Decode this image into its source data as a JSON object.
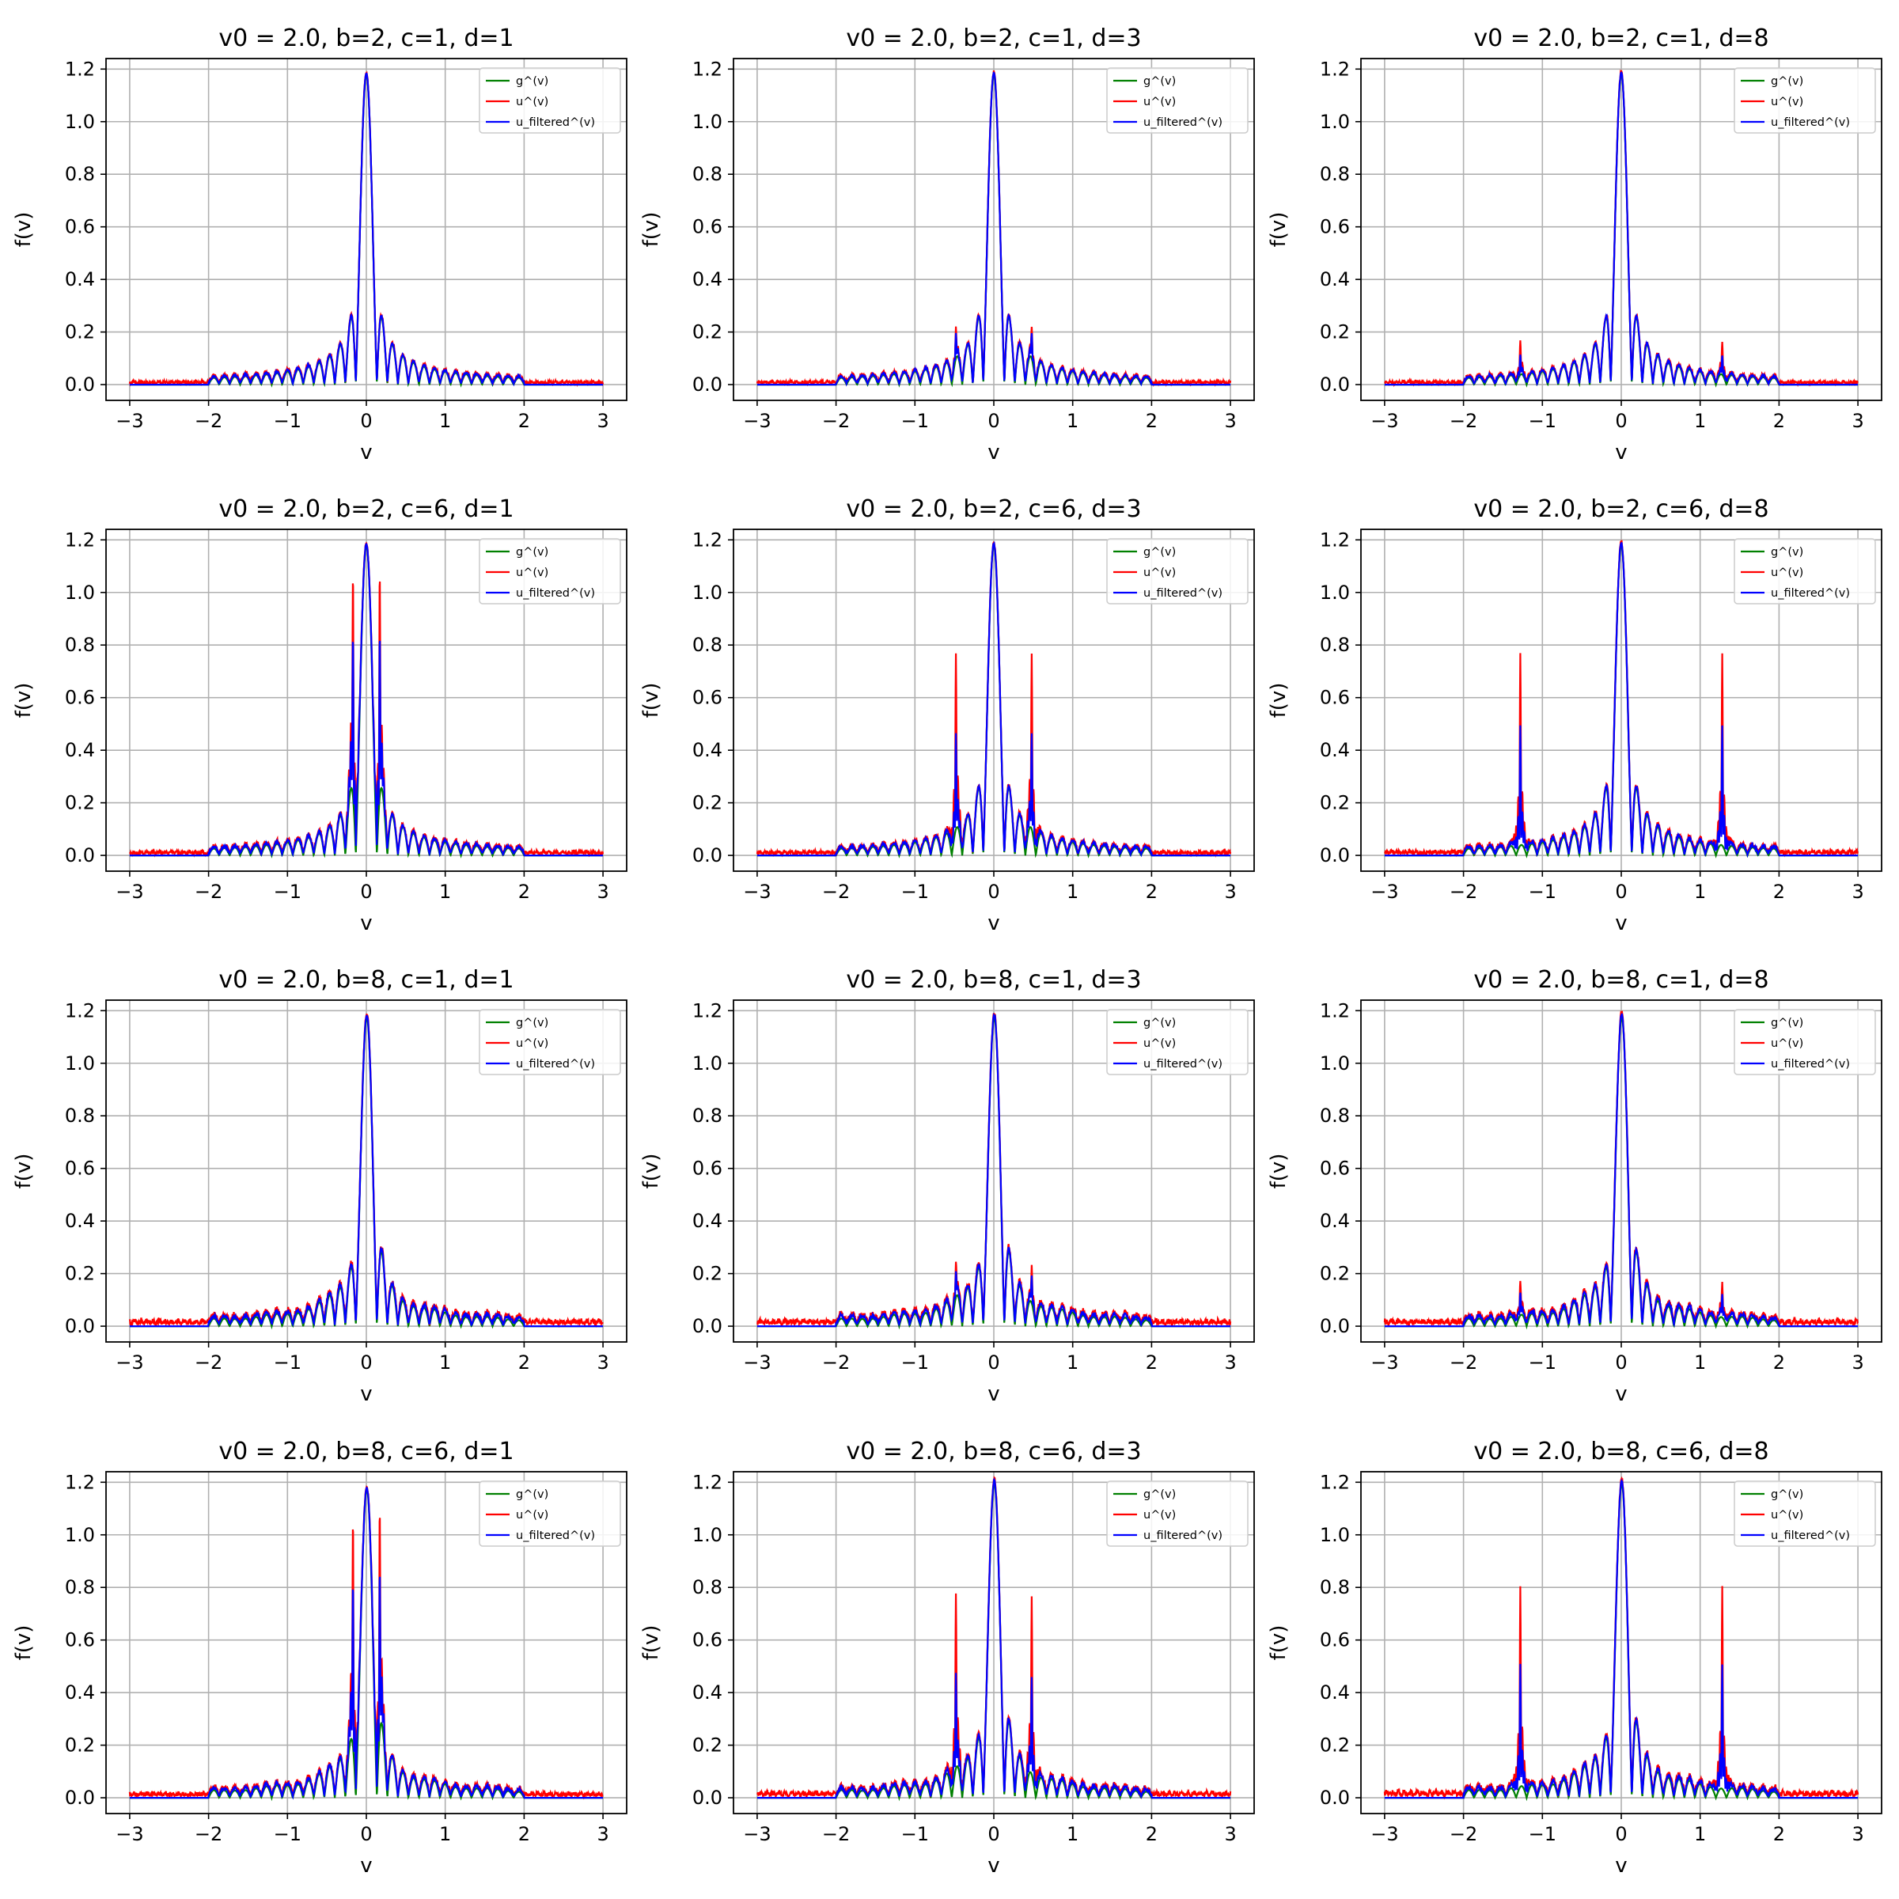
{
  "chart_data": [
    {
      "type": "line",
      "title": "v0 = 2.0, b=2, c=1, d=1",
      "xlabel": "v",
      "ylabel": "f(v)",
      "xlim": [
        -3.3,
        3.3
      ],
      "ylim": [
        -0.06,
        1.24
      ],
      "xticks": [
        "−3",
        "−2",
        "−1",
        "0",
        "1",
        "2",
        "3"
      ],
      "yticks": [
        "0.0",
        "0.2",
        "0.4",
        "0.6",
        "0.8",
        "1.0",
        "1.2"
      ],
      "grid": true,
      "legend": "top-right",
      "b": 2,
      "c": 1,
      "d": 1,
      "peak": 1.18,
      "spikes": [],
      "noise": 0.016,
      "series": [
        {
          "name": "g^(v)",
          "color": "#008000"
        },
        {
          "name": "u^(v)",
          "color": "#ff0000"
        },
        {
          "name": "u_filtered^(v)",
          "color": "#0000ff"
        }
      ]
    },
    {
      "type": "line",
      "title": "v0 = 2.0, b=2, c=1, d=3",
      "xlabel": "v",
      "ylabel": "f(v)",
      "xlim": [
        -3.3,
        3.3
      ],
      "ylim": [
        -0.06,
        1.24
      ],
      "xticks": [
        "−3",
        "−2",
        "−1",
        "0",
        "1",
        "2",
        "3"
      ],
      "yticks": [
        "0.0",
        "0.2",
        "0.4",
        "0.6",
        "0.8",
        "1.0",
        "1.2"
      ],
      "grid": true,
      "legend": "top-right",
      "b": 2,
      "c": 1,
      "d": 3,
      "peak": 1.18,
      "spikes": [
        {
          "x": 0.48,
          "u": 0.11,
          "f": 0.09
        }
      ],
      "noise": 0.016,
      "series": [
        {
          "name": "g^(v)",
          "color": "#008000"
        },
        {
          "name": "u^(v)",
          "color": "#ff0000"
        },
        {
          "name": "u_filtered^(v)",
          "color": "#0000ff"
        }
      ]
    },
    {
      "type": "line",
      "title": "v0 = 2.0, b=2, c=1, d=8",
      "xlabel": "v",
      "ylabel": "f(v)",
      "xlim": [
        -3.3,
        3.3
      ],
      "ylim": [
        -0.06,
        1.24
      ],
      "xticks": [
        "−3",
        "−2",
        "−1",
        "0",
        "1",
        "2",
        "3"
      ],
      "yticks": [
        "0.0",
        "0.2",
        "0.4",
        "0.6",
        "0.8",
        "1.0",
        "1.2"
      ],
      "grid": true,
      "legend": "top-right",
      "b": 2,
      "c": 1,
      "d": 8,
      "peak": 1.18,
      "spikes": [
        {
          "x": 1.28,
          "u": 0.12,
          "f": 0.07
        }
      ],
      "noise": 0.016,
      "series": [
        {
          "name": "g^(v)",
          "color": "#008000"
        },
        {
          "name": "u^(v)",
          "color": "#ff0000"
        },
        {
          "name": "u_filtered^(v)",
          "color": "#0000ff"
        }
      ]
    },
    {
      "type": "line",
      "title": "v0 = 2.0, b=2, c=6, d=1",
      "xlabel": "v",
      "ylabel": "f(v)",
      "xlim": [
        -3.3,
        3.3
      ],
      "ylim": [
        -0.06,
        1.24
      ],
      "xticks": [
        "−3",
        "−2",
        "−1",
        "0",
        "1",
        "2",
        "3"
      ],
      "yticks": [
        "0.0",
        "0.2",
        "0.4",
        "0.6",
        "0.8",
        "1.0",
        "1.2"
      ],
      "grid": true,
      "legend": "top-right",
      "b": 2,
      "c": 6,
      "d": 1,
      "peak": 1.18,
      "spikes": [
        {
          "x": 0.17,
          "u": 0.87,
          "f": 0.63
        }
      ],
      "noise": 0.02,
      "series": [
        {
          "name": "g^(v)",
          "color": "#008000"
        },
        {
          "name": "u^(v)",
          "color": "#ff0000"
        },
        {
          "name": "u_filtered^(v)",
          "color": "#0000ff"
        }
      ]
    },
    {
      "type": "line",
      "title": "v0 = 2.0, b=2, c=6, d=3",
      "xlabel": "v",
      "ylabel": "f(v)",
      "xlim": [
        -3.3,
        3.3
      ],
      "ylim": [
        -0.06,
        1.24
      ],
      "xticks": [
        "−3",
        "−2",
        "−1",
        "0",
        "1",
        "2",
        "3"
      ],
      "yticks": [
        "0.0",
        "0.2",
        "0.4",
        "0.6",
        "0.8",
        "1.0",
        "1.2"
      ],
      "grid": true,
      "legend": "top-right",
      "b": 2,
      "c": 6,
      "d": 3,
      "peak": 1.18,
      "spikes": [
        {
          "x": 0.48,
          "u": 0.66,
          "f": 0.36
        }
      ],
      "noise": 0.02,
      "series": [
        {
          "name": "g^(v)",
          "color": "#008000"
        },
        {
          "name": "u^(v)",
          "color": "#ff0000"
        },
        {
          "name": "u_filtered^(v)",
          "color": "#0000ff"
        }
      ]
    },
    {
      "type": "line",
      "title": "v0 = 2.0, b=2, c=6, d=8",
      "xlabel": "v",
      "ylabel": "f(v)",
      "xlim": [
        -3.3,
        3.3
      ],
      "ylim": [
        -0.06,
        1.24
      ],
      "xticks": [
        "−3",
        "−2",
        "−1",
        "0",
        "1",
        "2",
        "3"
      ],
      "yticks": [
        "0.0",
        "0.2",
        "0.4",
        "0.6",
        "0.8",
        "1.0",
        "1.2"
      ],
      "grid": true,
      "legend": "top-right",
      "b": 2,
      "c": 6,
      "d": 8,
      "peak": 1.18,
      "spikes": [
        {
          "x": 1.28,
          "u": 0.72,
          "f": 0.45
        }
      ],
      "noise": 0.022,
      "series": [
        {
          "name": "g^(v)",
          "color": "#008000"
        },
        {
          "name": "u^(v)",
          "color": "#ff0000"
        },
        {
          "name": "u_filtered^(v)",
          "color": "#0000ff"
        }
      ]
    },
    {
      "type": "line",
      "title": "v0 = 2.0, b=8, c=1, d=1",
      "xlabel": "v",
      "ylabel": "f(v)",
      "xlim": [
        -3.3,
        3.3
      ],
      "ylim": [
        -0.06,
        1.24
      ],
      "xticks": [
        "−3",
        "−2",
        "−1",
        "0",
        "1",
        "2",
        "3"
      ],
      "yticks": [
        "0.0",
        "0.2",
        "0.4",
        "0.6",
        "0.8",
        "1.0",
        "1.2"
      ],
      "grid": true,
      "legend": "top-right",
      "b": 8,
      "c": 1,
      "d": 1,
      "peak": 1.17,
      "spikes": [],
      "noise": 0.03,
      "series": [
        {
          "name": "g^(v)",
          "color": "#008000"
        },
        {
          "name": "u^(v)",
          "color": "#ff0000"
        },
        {
          "name": "u_filtered^(v)",
          "color": "#0000ff"
        }
      ]
    },
    {
      "type": "line",
      "title": "v0 = 2.0, b=8, c=1, d=3",
      "xlabel": "v",
      "ylabel": "f(v)",
      "xlim": [
        -3.3,
        3.3
      ],
      "ylim": [
        -0.06,
        1.24
      ],
      "xticks": [
        "−3",
        "−2",
        "−1",
        "0",
        "1",
        "2",
        "3"
      ],
      "yticks": [
        "0.0",
        "0.2",
        "0.4",
        "0.6",
        "0.8",
        "1.0",
        "1.2"
      ],
      "grid": true,
      "legend": "top-right",
      "b": 8,
      "c": 1,
      "d": 3,
      "peak": 1.17,
      "spikes": [
        {
          "x": 0.48,
          "u": 0.12,
          "f": 0.09
        }
      ],
      "noise": 0.03,
      "series": [
        {
          "name": "g^(v)",
          "color": "#008000"
        },
        {
          "name": "u^(v)",
          "color": "#ff0000"
        },
        {
          "name": "u_filtered^(v)",
          "color": "#0000ff"
        }
      ]
    },
    {
      "type": "line",
      "title": "v0 = 2.0, b=8, c=1, d=8",
      "xlabel": "v",
      "ylabel": "f(v)",
      "xlim": [
        -3.3,
        3.3
      ],
      "ylim": [
        -0.06,
        1.24
      ],
      "xticks": [
        "−3",
        "−2",
        "−1",
        "0",
        "1",
        "2",
        "3"
      ],
      "yticks": [
        "0.0",
        "0.2",
        "0.4",
        "0.6",
        "0.8",
        "1.0",
        "1.2"
      ],
      "grid": true,
      "legend": "top-right",
      "b": 8,
      "c": 1,
      "d": 8,
      "peak": 1.17,
      "spikes": [
        {
          "x": 1.28,
          "u": 0.12,
          "f": 0.08
        }
      ],
      "noise": 0.03,
      "series": [
        {
          "name": "g^(v)",
          "color": "#008000"
        },
        {
          "name": "u^(v)",
          "color": "#ff0000"
        },
        {
          "name": "u_filtered^(v)",
          "color": "#0000ff"
        }
      ]
    },
    {
      "type": "line",
      "title": "v0 = 2.0, b=8, c=6, d=1",
      "xlabel": "v",
      "ylabel": "f(v)",
      "xlim": [
        -3.3,
        3.3
      ],
      "ylim": [
        -0.06,
        1.24
      ],
      "xticks": [
        "−3",
        "−2",
        "−1",
        "0",
        "1",
        "2",
        "3"
      ],
      "yticks": [
        "0.0",
        "0.2",
        "0.4",
        "0.6",
        "0.8",
        "1.0",
        "1.2"
      ],
      "grid": true,
      "legend": "top-right",
      "b": 8,
      "c": 6,
      "d": 1,
      "peak": 1.17,
      "spikes": [
        {
          "x": 0.17,
          "u": 0.87,
          "f": 0.63
        }
      ],
      "noise": 0.025,
      "series": [
        {
          "name": "g^(v)",
          "color": "#008000"
        },
        {
          "name": "u^(v)",
          "color": "#ff0000"
        },
        {
          "name": "u_filtered^(v)",
          "color": "#0000ff"
        }
      ]
    },
    {
      "type": "line",
      "title": "v0 = 2.0, b=8, c=6, d=3",
      "xlabel": "v",
      "ylabel": "f(v)",
      "xlim": [
        -3.3,
        3.3
      ],
      "ylim": [
        -0.06,
        1.24
      ],
      "xticks": [
        "−3",
        "−2",
        "−1",
        "0",
        "1",
        "2",
        "3"
      ],
      "yticks": [
        "0.0",
        "0.2",
        "0.4",
        "0.6",
        "0.8",
        "1.0",
        "1.2"
      ],
      "grid": true,
      "legend": "top-right",
      "b": 8,
      "c": 6,
      "d": 3,
      "peak": 1.19,
      "spikes": [
        {
          "x": 0.48,
          "u": 0.66,
          "f": 0.36
        }
      ],
      "noise": 0.028,
      "series": [
        {
          "name": "g^(v)",
          "color": "#008000"
        },
        {
          "name": "u^(v)",
          "color": "#ff0000"
        },
        {
          "name": "u_filtered^(v)",
          "color": "#0000ff"
        }
      ]
    },
    {
      "type": "line",
      "title": "v0 = 2.0, b=8, c=6, d=8",
      "xlabel": "v",
      "ylabel": "f(v)",
      "xlim": [
        -3.3,
        3.3
      ],
      "ylim": [
        -0.06,
        1.24
      ],
      "xticks": [
        "−3",
        "−2",
        "−1",
        "0",
        "1",
        "2",
        "3"
      ],
      "yticks": [
        "0.0",
        "0.2",
        "0.4",
        "0.6",
        "0.8",
        "1.0",
        "1.2"
      ],
      "grid": true,
      "legend": "top-right",
      "b": 8,
      "c": 6,
      "d": 8,
      "peak": 1.19,
      "spikes": [
        {
          "x": 1.28,
          "u": 0.75,
          "f": 0.46
        }
      ],
      "noise": 0.03,
      "series": [
        {
          "name": "g^(v)",
          "color": "#008000"
        },
        {
          "name": "u^(v)",
          "color": "#ff0000"
        },
        {
          "name": "u_filtered^(v)",
          "color": "#0000ff"
        }
      ]
    }
  ]
}
